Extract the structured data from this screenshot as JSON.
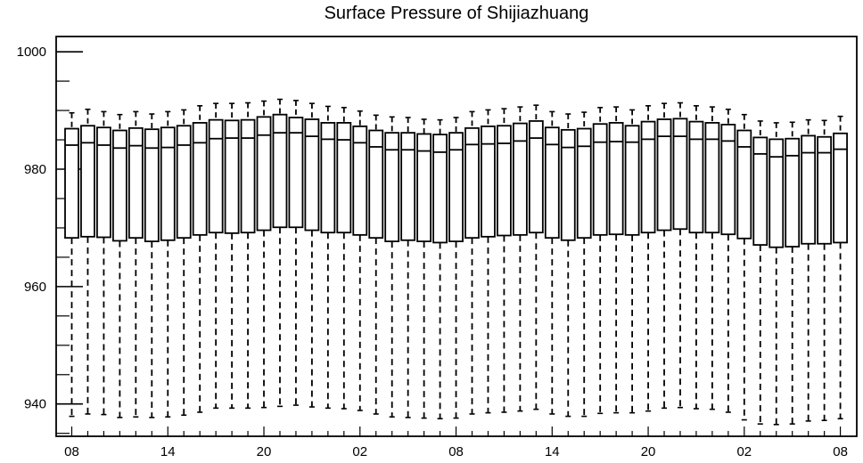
{
  "chart_data": {
    "type": "box",
    "title": "Surface Pressure of Shijiazhuang",
    "xlabel": "",
    "ylabel": "",
    "ylim": [
      934.5,
      1002.6
    ],
    "y_ticks": [
      940,
      960,
      980,
      1000
    ],
    "y_tick_labels": [
      "940",
      "960",
      "980",
      "1000"
    ],
    "x_tick_labels": [
      "08",
      "14",
      "20",
      "02",
      "08",
      "14",
      "20",
      "02",
      "08"
    ],
    "x_tick_positions": [
      0,
      6,
      12,
      18,
      24,
      30,
      36,
      42,
      48
    ],
    "grid": false,
    "x_hours": [
      8,
      9,
      10,
      11,
      12,
      13,
      14,
      15,
      16,
      17,
      18,
      19,
      20,
      21,
      22,
      23,
      0,
      1,
      2,
      3,
      4,
      5,
      6,
      7,
      8,
      9,
      10,
      11,
      12,
      13,
      14,
      15,
      16,
      17,
      18,
      19,
      20,
      21,
      22,
      23,
      0,
      1,
      2,
      3,
      4,
      5,
      6,
      7,
      8
    ],
    "q1": [
      968.3,
      968.5,
      968.4,
      967.8,
      968.3,
      967.7,
      967.9,
      968.3,
      968.8,
      969.2,
      969.1,
      969.2,
      969.6,
      970.1,
      970.1,
      969.6,
      969.2,
      969.2,
      968.8,
      968.3,
      967.7,
      967.9,
      967.7,
      967.5,
      967.7,
      968.3,
      968.5,
      968.7,
      968.8,
      969.2,
      968.3,
      967.9,
      968.3,
      968.8,
      968.9,
      968.8,
      969.2,
      969.6,
      969.8,
      969.2,
      969.2,
      968.9,
      968.2,
      967.1,
      966.7,
      966.8,
      967.3,
      967.3,
      967.5
    ],
    "median": [
      984.1,
      984.5,
      984.1,
      983.6,
      984.0,
      983.6,
      983.7,
      984.1,
      984.5,
      985.2,
      985.3,
      985.3,
      985.8,
      986.2,
      986.2,
      985.6,
      985.1,
      985.0,
      984.5,
      983.8,
      983.3,
      983.3,
      983.1,
      982.9,
      983.3,
      984.2,
      984.3,
      984.4,
      984.8,
      985.3,
      984.2,
      983.7,
      983.9,
      984.6,
      984.7,
      984.6,
      985.1,
      985.6,
      985.6,
      985.1,
      985.1,
      984.8,
      983.8,
      982.6,
      982.1,
      982.3,
      982.8,
      982.8,
      983.4
    ],
    "q3": [
      986.9,
      987.4,
      987.1,
      986.6,
      987.0,
      986.8,
      987.1,
      987.4,
      987.9,
      988.4,
      988.3,
      988.4,
      988.9,
      989.3,
      988.8,
      988.5,
      987.9,
      987.9,
      987.3,
      986.6,
      986.2,
      986.2,
      986.0,
      985.9,
      986.2,
      987.0,
      987.3,
      987.4,
      987.8,
      988.2,
      987.1,
      986.7,
      986.9,
      987.7,
      987.9,
      987.4,
      988.1,
      988.5,
      988.6,
      988.1,
      987.9,
      987.6,
      986.6,
      985.4,
      985.1,
      985.2,
      985.7,
      985.5,
      986.1
    ],
    "upper_whisker": [
      989.6,
      990.2,
      989.8,
      989.3,
      989.8,
      989.4,
      989.8,
      990.1,
      990.8,
      991.2,
      991.2,
      991.3,
      991.6,
      991.9,
      991.7,
      991.2,
      990.7,
      990.5,
      989.9,
      989.2,
      988.9,
      988.8,
      988.5,
      988.4,
      988.8,
      989.8,
      990.1,
      990.3,
      990.6,
      990.9,
      989.8,
      989.4,
      989.7,
      990.5,
      990.6,
      990.1,
      990.8,
      991.2,
      991.3,
      990.8,
      990.6,
      990.2,
      989.3,
      988.2,
      987.9,
      988.0,
      988.4,
      988.3,
      989.0
    ],
    "lower_whisker": [
      937.9,
      938.3,
      938.2,
      937.7,
      937.8,
      937.7,
      937.8,
      938.1,
      938.6,
      939.3,
      939.3,
      939.3,
      939.4,
      939.6,
      939.8,
      939.5,
      939.3,
      939.2,
      938.9,
      938.3,
      937.8,
      937.7,
      937.6,
      937.5,
      937.6,
      938.3,
      938.5,
      938.6,
      938.8,
      939.1,
      938.3,
      937.9,
      937.9,
      938.4,
      938.5,
      938.5,
      938.8,
      939.3,
      939.4,
      939.2,
      939.1,
      938.6,
      937.3,
      936.6,
      936.5,
      936.6,
      937.1,
      937.2,
      937.5
    ]
  }
}
